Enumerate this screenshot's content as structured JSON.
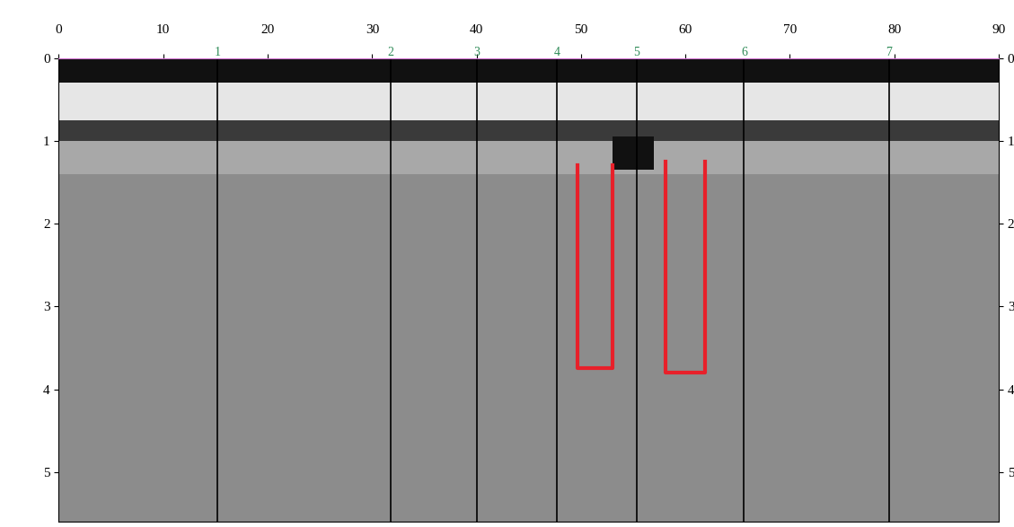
{
  "chart_data": {
    "type": "radargram",
    "xlim": [
      0,
      90
    ],
    "xticks": [
      0,
      10,
      20,
      30,
      40,
      50,
      60,
      70,
      80,
      90
    ],
    "ylim": [
      0,
      5.6
    ],
    "yticks": [
      0,
      1,
      2,
      3,
      4,
      5
    ],
    "background": "#8c8c8c",
    "layers": [
      {
        "x": [
          0,
          90
        ],
        "y": [
          0.0,
          0.3
        ],
        "color": "#111111"
      },
      {
        "x": [
          0,
          90
        ],
        "y": [
          0.3,
          0.75
        ],
        "color": "#e6e6e6"
      },
      {
        "x": [
          0,
          90
        ],
        "y": [
          0.75,
          1.0
        ],
        "color": "#3a3a3a"
      },
      {
        "x": [
          0,
          90
        ],
        "y": [
          1.0,
          1.4
        ],
        "color": "#a8a8a8"
      },
      {
        "x": [
          53.0,
          57.0
        ],
        "y": [
          0.95,
          1.35
        ],
        "color": "#111111"
      }
    ],
    "markers": {
      "x": [
        15.2,
        31.8,
        40.0,
        47.7,
        55.3,
        65.6,
        79.5
      ],
      "labels": [
        "1",
        "2",
        "3",
        "4",
        "5",
        "6",
        "7"
      ],
      "color": "#2e8b57"
    },
    "outlines": [
      {
        "x": [
          49.7,
          49.7,
          53.0,
          53.0
        ],
        "y": [
          1.3,
          3.75,
          3.75,
          1.3
        ]
      },
      {
        "x": [
          58.1,
          58.1,
          61.9,
          61.9
        ],
        "y": [
          1.25,
          3.8,
          3.8,
          1.25
        ]
      }
    ],
    "color": "#e8202a"
  }
}
